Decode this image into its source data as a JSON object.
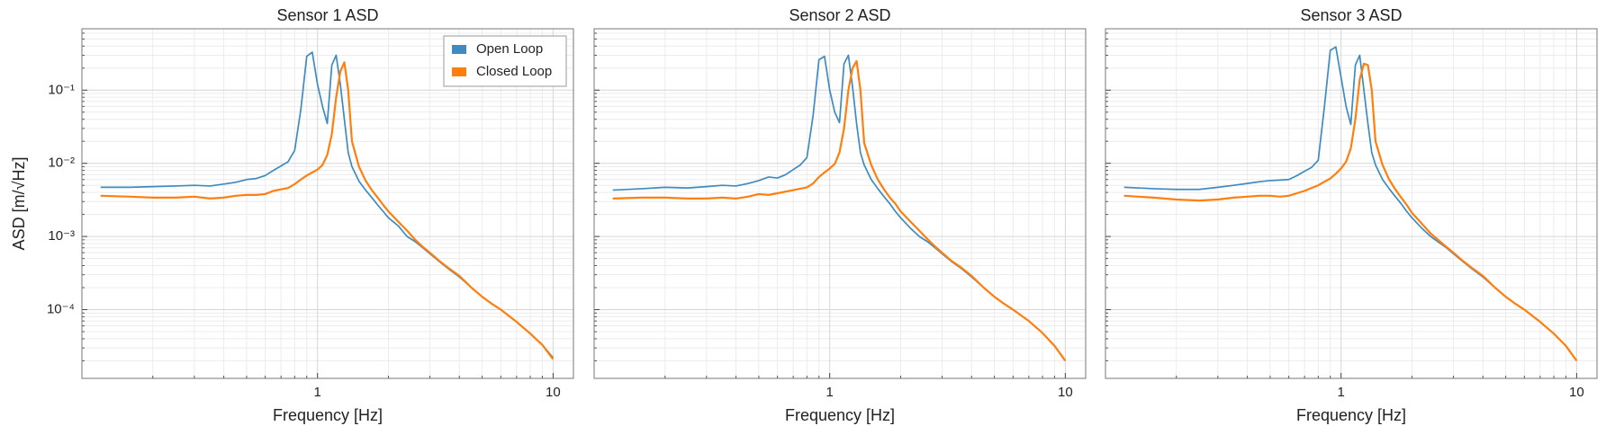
{
  "chart_data": [
    {
      "type": "line",
      "title": "Sensor 1 ASD",
      "xlabel": "Frequency [Hz]",
      "ylabel": "ASD [m/√Hz]",
      "x": [
        0.12,
        0.16,
        0.2,
        0.25,
        0.3,
        0.35,
        0.4,
        0.45,
        0.5,
        0.55,
        0.6,
        0.65,
        0.7,
        0.75,
        0.8,
        0.85,
        0.9,
        0.95,
        1.0,
        1.05,
        1.1,
        1.15,
        1.2,
        1.25,
        1.3,
        1.35,
        1.4,
        1.5,
        1.6,
        1.7,
        1.8,
        1.9,
        2.0,
        2.2,
        2.4,
        2.6,
        2.8,
        3.0,
        3.3,
        3.6,
        4.0,
        4.5,
        5.0,
        5.5,
        6.0,
        7.0,
        8.0,
        9.0,
        10.0
      ],
      "series": [
        {
          "name": "Open Loop",
          "color": "#3d8bc0",
          "values": [
            0.0047,
            0.0047,
            0.0048,
            0.0049,
            0.005,
            0.0049,
            0.0052,
            0.0055,
            0.006,
            0.0062,
            0.0068,
            0.008,
            0.0092,
            0.0105,
            0.015,
            0.055,
            0.29,
            0.33,
            0.12,
            0.06,
            0.035,
            0.22,
            0.3,
            0.12,
            0.04,
            0.014,
            0.009,
            0.0057,
            0.0043,
            0.0034,
            0.0027,
            0.0022,
            0.0018,
            0.0014,
            0.001,
            0.00085,
            0.0007,
            0.00058,
            0.00045,
            0.00036,
            0.00028,
            0.0002,
            0.00015,
            0.00012,
            0.0001,
            6.8e-05,
            4.7e-05,
            3.3e-05,
            2.2e-05
          ]
        },
        {
          "name": "Closed Loop",
          "color": "#ff7f0e",
          "values": [
            0.0036,
            0.0035,
            0.0034,
            0.0034,
            0.0035,
            0.0033,
            0.0034,
            0.0036,
            0.0037,
            0.0037,
            0.0038,
            0.0042,
            0.0044,
            0.0046,
            0.0052,
            0.006,
            0.0068,
            0.0075,
            0.0082,
            0.0095,
            0.013,
            0.025,
            0.08,
            0.18,
            0.24,
            0.1,
            0.02,
            0.009,
            0.0058,
            0.0043,
            0.0034,
            0.0027,
            0.0022,
            0.0016,
            0.0012,
            0.0009,
            0.00072,
            0.0006,
            0.00046,
            0.00037,
            0.00029,
            0.0002,
            0.00015,
            0.00012,
            0.0001,
            6.8e-05,
            4.7e-05,
            3.3e-05,
            2.1e-05
          ]
        }
      ],
      "xlim": [
        0.1,
        12.2
      ],
      "ylim": [
        1.15e-05,
        0.69
      ],
      "xticks": [
        1,
        10
      ],
      "yticks": [
        {
          "value": 0.1,
          "label": "10⁻¹"
        },
        {
          "value": 0.01,
          "label": "10⁻²"
        },
        {
          "value": 0.001,
          "label": "10⁻³"
        },
        {
          "value": 0.0001,
          "label": "10⁻⁴"
        }
      ],
      "log_x": true,
      "log_y": true,
      "grid": true,
      "minor_grid": true,
      "legend": "upper right",
      "ytick_labels": true
    },
    {
      "type": "line",
      "title": "Sensor 2 ASD",
      "xlabel": "Frequency [Hz]",
      "x": [
        0.12,
        0.16,
        0.2,
        0.25,
        0.3,
        0.35,
        0.4,
        0.45,
        0.5,
        0.55,
        0.6,
        0.65,
        0.7,
        0.75,
        0.8,
        0.85,
        0.9,
        0.95,
        1.0,
        1.05,
        1.1,
        1.15,
        1.2,
        1.25,
        1.3,
        1.35,
        1.4,
        1.5,
        1.6,
        1.7,
        1.8,
        1.9,
        2.0,
        2.2,
        2.4,
        2.6,
        2.8,
        3.0,
        3.3,
        3.6,
        4.0,
        4.5,
        5.0,
        5.5,
        6.0,
        7.0,
        8.0,
        9.0,
        10.0
      ],
      "series": [
        {
          "name": "Open Loop",
          "color": "#3d8bc0",
          "values": [
            0.0043,
            0.0045,
            0.0047,
            0.0046,
            0.0048,
            0.005,
            0.0049,
            0.0053,
            0.0058,
            0.0065,
            0.0063,
            0.007,
            0.0082,
            0.0095,
            0.012,
            0.045,
            0.26,
            0.29,
            0.1,
            0.05,
            0.036,
            0.23,
            0.3,
            0.11,
            0.035,
            0.014,
            0.0095,
            0.006,
            0.0045,
            0.0035,
            0.0028,
            0.0022,
            0.0018,
            0.0013,
            0.001,
            0.00085,
            0.0007,
            0.00058,
            0.00045,
            0.00037,
            0.00028,
            0.0002,
            0.00015,
            0.00012,
            0.0001,
            7e-05,
            4.8e-05,
            3.2e-05,
            2e-05
          ]
        },
        {
          "name": "Closed Loop",
          "color": "#ff7f0e",
          "values": [
            0.0033,
            0.0034,
            0.0034,
            0.0033,
            0.0033,
            0.0034,
            0.0033,
            0.0035,
            0.0038,
            0.0037,
            0.0039,
            0.0041,
            0.0043,
            0.0045,
            0.0047,
            0.0053,
            0.0065,
            0.0075,
            0.0085,
            0.0098,
            0.014,
            0.03,
            0.1,
            0.2,
            0.25,
            0.1,
            0.019,
            0.0095,
            0.006,
            0.0044,
            0.0034,
            0.0028,
            0.0022,
            0.0016,
            0.0012,
            0.00092,
            0.00073,
            0.0006,
            0.00046,
            0.00038,
            0.00029,
            0.0002,
            0.00015,
            0.00012,
            0.0001,
            7e-05,
            4.8e-05,
            3.2e-05,
            2e-05
          ]
        }
      ],
      "xlim": [
        0.1,
        12.2
      ],
      "ylim": [
        1.15e-05,
        0.69
      ],
      "xticks": [
        1,
        10
      ],
      "yticks": [
        0.1,
        0.01,
        0.001,
        0.0001
      ],
      "log_x": true,
      "log_y": true,
      "grid": true,
      "minor_grid": true,
      "ytick_labels": false
    },
    {
      "type": "line",
      "title": "Sensor 3 ASD",
      "xlabel": "Frequency [Hz]",
      "x": [
        0.12,
        0.16,
        0.2,
        0.25,
        0.3,
        0.35,
        0.4,
        0.45,
        0.5,
        0.55,
        0.6,
        0.65,
        0.7,
        0.75,
        0.8,
        0.85,
        0.9,
        0.95,
        1.0,
        1.05,
        1.1,
        1.15,
        1.2,
        1.25,
        1.3,
        1.35,
        1.4,
        1.5,
        1.6,
        1.7,
        1.8,
        1.9,
        2.0,
        2.2,
        2.4,
        2.6,
        2.8,
        3.0,
        3.3,
        3.6,
        4.0,
        4.5,
        5.0,
        5.5,
        6.0,
        7.0,
        8.0,
        9.0,
        10.0
      ],
      "series": [
        {
          "name": "Open Loop",
          "color": "#3d8bc0",
          "values": [
            0.0047,
            0.0045,
            0.0044,
            0.0044,
            0.0047,
            0.005,
            0.0053,
            0.0056,
            0.0058,
            0.0059,
            0.006,
            0.0068,
            0.0078,
            0.0088,
            0.011,
            0.06,
            0.35,
            0.39,
            0.15,
            0.06,
            0.034,
            0.22,
            0.3,
            0.1,
            0.035,
            0.014,
            0.0095,
            0.006,
            0.0045,
            0.0035,
            0.0028,
            0.0022,
            0.0018,
            0.0013,
            0.001,
            0.00083,
            0.0007,
            0.00058,
            0.00045,
            0.00036,
            0.00028,
            0.0002,
            0.00015,
            0.00012,
            0.0001,
            6.8e-05,
            4.7e-05,
            3.2e-05,
            2e-05
          ]
        },
        {
          "name": "Closed Loop",
          "color": "#ff7f0e",
          "values": [
            0.0036,
            0.0034,
            0.0032,
            0.0031,
            0.0032,
            0.0034,
            0.0035,
            0.0036,
            0.0036,
            0.0035,
            0.0036,
            0.0039,
            0.0042,
            0.0046,
            0.005,
            0.0056,
            0.0062,
            0.0072,
            0.0085,
            0.0105,
            0.016,
            0.04,
            0.14,
            0.23,
            0.22,
            0.1,
            0.02,
            0.0095,
            0.006,
            0.0044,
            0.0034,
            0.0027,
            0.0021,
            0.0015,
            0.0011,
            0.00088,
            0.00072,
            0.0006,
            0.00046,
            0.00037,
            0.00029,
            0.0002,
            0.00015,
            0.00012,
            0.0001,
            6.8e-05,
            4.7e-05,
            3.2e-05,
            2e-05
          ]
        }
      ],
      "xlim": [
        0.1,
        12.2
      ],
      "ylim": [
        1.15e-05,
        0.69
      ],
      "xticks": [
        1,
        10
      ],
      "yticks": [
        0.1,
        0.01,
        0.001,
        0.0001
      ],
      "log_x": true,
      "log_y": true,
      "grid": true,
      "minor_grid": true,
      "ytick_labels": false
    }
  ]
}
